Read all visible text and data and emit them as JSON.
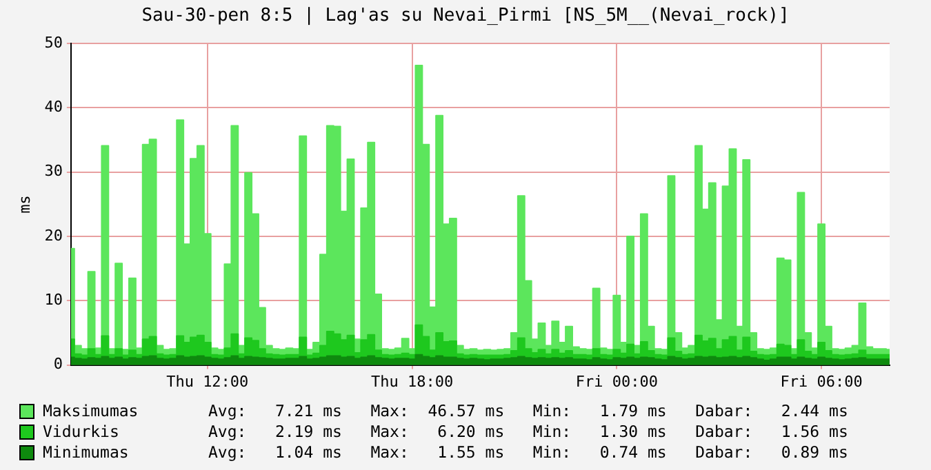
{
  "chart_data": {
    "type": "area",
    "title": "Sau-30-pen 8:5 | Lag'as su Nevai_Pirmi [NS_5M__(Nevai_rock)]",
    "ylabel": "ms",
    "categories": [
      null,
      null,
      null,
      null,
      null,
      null,
      null,
      null,
      null,
      null,
      null,
      null,
      null,
      null,
      null,
      null,
      null,
      null,
      null,
      null,
      "Thu 12:00",
      null,
      null,
      null,
      null,
      null,
      null,
      null,
      null,
      null,
      null,
      null,
      null,
      null,
      null,
      null,
      null,
      null,
      null,
      null,
      null,
      null,
      null,
      null,
      null,
      null,
      null,
      null,
      null,
      null,
      "Thu 18:00",
      null,
      null,
      null,
      null,
      null,
      null,
      null,
      null,
      null,
      null,
      null,
      null,
      null,
      null,
      null,
      null,
      null,
      null,
      null,
      null,
      null,
      null,
      null,
      null,
      null,
      null,
      null,
      null,
      null,
      "Fri 00:00",
      null,
      null,
      null,
      null,
      null,
      null,
      null,
      null,
      null,
      null,
      null,
      null,
      null,
      null,
      null,
      null,
      null,
      null,
      null,
      null,
      null,
      null,
      null,
      null,
      null,
      null,
      null,
      null,
      null,
      "Fri 06:00",
      null,
      null,
      null,
      null,
      null,
      null,
      null,
      null,
      null,
      null
    ],
    "ylim": [
      0,
      50
    ],
    "yticks": [
      0,
      10,
      20,
      30,
      40,
      50
    ],
    "grid": true,
    "legend": "bottom",
    "marker": "none",
    "series": [
      {
        "name": "Maksimumas",
        "color": "#5ce65c",
        "values": [
          18.1,
          3,
          2.5,
          14.5,
          2.6,
          34.1,
          2.5,
          15.8,
          2.4,
          13.5,
          2.6,
          34.3,
          35.1,
          3,
          2.4,
          2.5,
          38.1,
          18.8,
          32.1,
          34.1,
          20.4,
          2.6,
          2.4,
          15.7,
          37.2,
          3,
          29.9,
          23.5,
          8.9,
          3,
          2.5,
          2.4,
          2.6,
          2.5,
          35.6,
          2.4,
          3.5,
          17.2,
          37.2,
          37.1,
          23.9,
          32.0,
          4,
          24.4,
          34.6,
          11.0,
          2.5,
          2.4,
          2.6,
          4.1,
          2.5,
          46.6,
          34.3,
          9,
          38.8,
          21.9,
          22.8,
          3,
          2.4,
          2.5,
          2.3,
          2.4,
          2.3,
          2.4,
          2.5,
          5,
          26.3,
          13.1,
          4,
          6.5,
          3,
          6.8,
          3.5,
          6,
          2.8,
          2.5,
          2.4,
          11.9,
          2.6,
          2.4,
          10.8,
          3.5,
          20.0,
          3,
          23.5,
          6,
          2.5,
          2.4,
          29.4,
          5,
          2.6,
          3,
          34.1,
          24.2,
          28.3,
          7,
          27.8,
          33.6,
          6,
          31.9,
          5,
          2.5,
          2.4,
          2.6,
          16.6,
          16.3,
          2.5,
          26.8,
          5,
          2.6,
          21.9,
          6,
          2.5,
          2.4,
          2.6,
          3,
          9.6,
          2.8,
          2.5,
          2.5,
          2.4
        ]
      },
      {
        "name": "Vidurkis",
        "color": "#1ec81e",
        "values": [
          4,
          1.7,
          1.5,
          2.5,
          1.6,
          4.5,
          1.6,
          2.5,
          1.5,
          2.3,
          1.6,
          4,
          4.4,
          1.7,
          1.5,
          1.6,
          4.5,
          3.5,
          4.3,
          4.6,
          3.5,
          1.6,
          1.5,
          2.6,
          4.8,
          1.7,
          4.2,
          3.8,
          2.5,
          1.7,
          1.6,
          1.5,
          1.6,
          1.6,
          4.3,
          1.5,
          1.8,
          3,
          5.2,
          4.8,
          3.9,
          4.6,
          1.9,
          3.9,
          4.7,
          2.3,
          1.6,
          1.5,
          1.6,
          1.8,
          1.6,
          6.2,
          4.4,
          2.3,
          5,
          3.6,
          3.7,
          1.7,
          1.5,
          1.6,
          1.5,
          1.5,
          1.5,
          1.5,
          1.6,
          2.2,
          4.2,
          2.5,
          1.9,
          2.4,
          1.7,
          2.4,
          1.8,
          2.2,
          1.6,
          1.6,
          1.5,
          2.5,
          1.6,
          1.5,
          2.4,
          1.8,
          3.2,
          1.7,
          3.6,
          2.2,
          1.6,
          1.5,
          4.2,
          2.1,
          1.6,
          1.7,
          4.6,
          3.7,
          4.1,
          2.5,
          3.9,
          4.4,
          2.3,
          4.3,
          2.1,
          1.6,
          1.5,
          1.6,
          3.2,
          3,
          1.6,
          3.9,
          2.1,
          1.6,
          3.5,
          2.2,
          1.6,
          1.5,
          1.6,
          1.7,
          2.3,
          1.6,
          1.6,
          1.6,
          1.6
        ]
      },
      {
        "name": "Minimumas",
        "color": "#0e8a0e",
        "values": [
          1.2,
          1,
          0.9,
          1.1,
          1,
          1.3,
          1,
          1.2,
          0.9,
          1.1,
          1,
          1.3,
          1.4,
          1,
          0.9,
          1,
          1.4,
          1.2,
          1.3,
          1.4,
          1.2,
          1,
          0.9,
          1.1,
          1.4,
          1,
          1.3,
          1.2,
          1.1,
          1,
          0.9,
          0.9,
          1,
          1,
          1.3,
          0.9,
          1,
          1.2,
          1.4,
          1.4,
          1.2,
          1.3,
          1,
          1.2,
          1.4,
          1.1,
          1,
          0.9,
          1,
          1,
          0.9,
          1.6,
          1.3,
          1.1,
          1.4,
          1.2,
          1.2,
          1,
          0.9,
          1,
          0.9,
          0.8,
          0.9,
          0.9,
          1,
          1.1,
          1.3,
          1.1,
          1,
          1.1,
          1,
          1.1,
          1,
          1.1,
          0.9,
          0.9,
          0.8,
          1.1,
          0.9,
          0.8,
          1.1,
          1,
          1.2,
          1,
          1.2,
          1.1,
          0.9,
          0.8,
          1.3,
          1.1,
          0.9,
          1,
          1.3,
          1.2,
          1.3,
          1.1,
          1.2,
          1.3,
          1.1,
          1.3,
          1.1,
          0.9,
          0.7,
          0.9,
          1.2,
          1.2,
          0.9,
          1.2,
          1,
          0.9,
          1.2,
          1,
          0.9,
          0.8,
          0.9,
          1,
          1.1,
          0.9,
          0.9,
          0.9,
          0.9
        ]
      }
    ],
    "annotations": [
      "Avg:   7.21 ms   Max:  46.57 ms   Min:   1.79 ms   Dabar:   2.44 ms",
      "Avg:   2.19 ms   Max:   6.20 ms   Min:   1.30 ms   Dabar:   1.56 ms",
      "Avg:   1.04 ms   Max:   1.55 ms   Min:   0.74 ms   Dabar:   0.89 ms"
    ]
  }
}
